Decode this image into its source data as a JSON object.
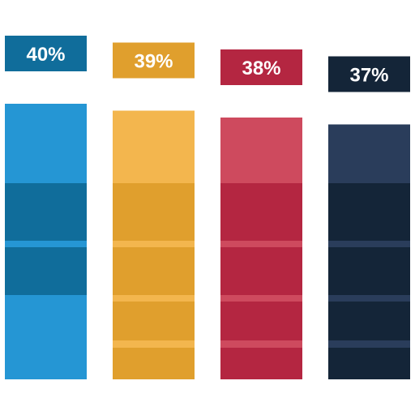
{
  "chart_data": {
    "type": "bar",
    "categories": [
      "",
      "",
      "",
      ""
    ],
    "values": [
      40,
      39,
      38,
      37
    ],
    "labels": [
      "40%",
      "39%",
      "38%",
      "37%"
    ],
    "title": "",
    "xlabel": "",
    "ylabel": "",
    "ylim": [
      0,
      40
    ],
    "grid": false,
    "legend": "none",
    "colors": [
      {
        "light": "#2596D4",
        "dark": "#106D9B"
      },
      {
        "light": "#F3B64E",
        "dark": "#E09F2D"
      },
      {
        "light": "#CE4A5E",
        "dark": "#B42641"
      },
      {
        "light": "#2A3D5B",
        "dark": "#142538"
      }
    ]
  }
}
